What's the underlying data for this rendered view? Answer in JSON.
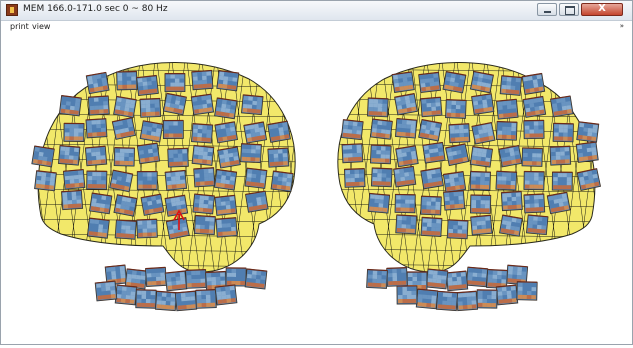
{
  "window": {
    "title": "MEM 166.0-171.0 sec 0 ~ 80 Hz",
    "close_glyph": "X"
  },
  "menu": {
    "print_label": "print",
    "view_label": "view",
    "overflow_glyph": "»"
  },
  "icons": {
    "app": "matlab-figure-icon",
    "minimize": "minimize-icon",
    "maximize": "maximize-icon",
    "close": "close-icon",
    "marker": "red-arrow-marker-icon"
  },
  "colors": {
    "brain_surface": "#f2e86a",
    "mesh_line": "#1c1c14",
    "tile_base": "#5a86b3",
    "marker": "#e11010"
  }
}
